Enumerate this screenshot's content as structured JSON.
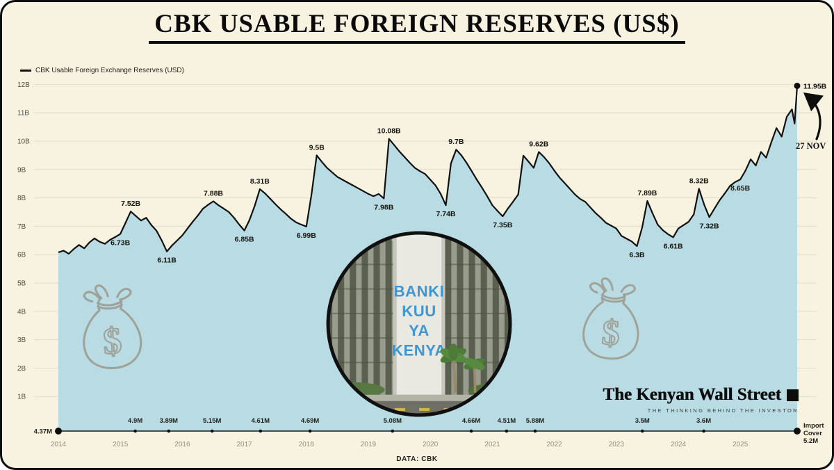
{
  "title": "CBK USABLE FOREIGN RESERVES (US$)",
  "legend": {
    "label": "CBK Usable Foreign Exchange Reserves (USD)"
  },
  "annotation_arrow": {
    "label": "27 NOV"
  },
  "import_cover_end": {
    "label": "Import Cover",
    "value": "5.2M"
  },
  "logo": {
    "wordmark": "The Kenyan Wall Street",
    "tagline": "THE THINKING BEHIND THE INVESTOR"
  },
  "footer": {
    "source": "DATA: CBK"
  },
  "center_image": {
    "sign_lines": [
      "BANKI",
      "KUU",
      "YA",
      "KENYA"
    ]
  },
  "colors": {
    "background": "#f8f3e1",
    "area_fill": "#b9dce4",
    "line": "#101010",
    "grid": "#e2dcc6",
    "sign_blue": "#3e97d3",
    "bag_gray": "#9fa298"
  },
  "chart_data": {
    "type": "area",
    "title": "CBK USABLE FOREIGN RESERVES (US$)",
    "series_name": "CBK Usable Foreign Exchange Reserves (USD)",
    "unit": "USD billions",
    "grid": true,
    "legend_position": "top-left",
    "xlim": [
      2014,
      2025.92
    ],
    "ylim": [
      0,
      12.6
    ],
    "x_ticks": [
      2014,
      2015,
      2016,
      2017,
      2018,
      2019,
      2020,
      2021,
      2022,
      2023,
      2024,
      2025
    ],
    "y_ticks": [
      {
        "value": 1,
        "label": "1B"
      },
      {
        "value": 2,
        "label": "2B"
      },
      {
        "value": 3,
        "label": "3B"
      },
      {
        "value": 4,
        "label": "4B"
      },
      {
        "value": 5,
        "label": "5B"
      },
      {
        "value": 6,
        "label": "6B"
      },
      {
        "value": 7,
        "label": "7B"
      },
      {
        "value": 8,
        "label": "8B"
      },
      {
        "value": 9,
        "label": "9B"
      },
      {
        "value": 10,
        "label": "10B"
      },
      {
        "value": 11,
        "label": "11B"
      },
      {
        "value": 12,
        "label": "12B"
      }
    ],
    "points": [
      [
        2014.0,
        6.08
      ],
      [
        2014.083,
        6.14
      ],
      [
        2014.167,
        6.03
      ],
      [
        2014.25,
        6.2
      ],
      [
        2014.333,
        6.34
      ],
      [
        2014.417,
        6.22
      ],
      [
        2014.5,
        6.43
      ],
      [
        2014.583,
        6.57
      ],
      [
        2014.667,
        6.45
      ],
      [
        2014.75,
        6.38
      ],
      [
        2014.833,
        6.52
      ],
      [
        2014.917,
        6.62
      ],
      [
        2015.0,
        6.73
      ],
      [
        2015.083,
        7.12
      ],
      [
        2015.167,
        7.52
      ],
      [
        2015.25,
        7.36
      ],
      [
        2015.333,
        7.2
      ],
      [
        2015.417,
        7.3
      ],
      [
        2015.5,
        7.04
      ],
      [
        2015.583,
        6.84
      ],
      [
        2015.667,
        6.5
      ],
      [
        2015.75,
        6.11
      ],
      [
        2015.833,
        6.32
      ],
      [
        2015.917,
        6.5
      ],
      [
        2016.0,
        6.68
      ],
      [
        2016.083,
        6.92
      ],
      [
        2016.167,
        7.16
      ],
      [
        2016.25,
        7.38
      ],
      [
        2016.333,
        7.62
      ],
      [
        2016.417,
        7.76
      ],
      [
        2016.5,
        7.88
      ],
      [
        2016.583,
        7.74
      ],
      [
        2016.667,
        7.62
      ],
      [
        2016.75,
        7.5
      ],
      [
        2016.833,
        7.3
      ],
      [
        2016.917,
        7.06
      ],
      [
        2017.0,
        6.85
      ],
      [
        2017.083,
        7.22
      ],
      [
        2017.167,
        7.72
      ],
      [
        2017.25,
        8.31
      ],
      [
        2017.333,
        8.16
      ],
      [
        2017.417,
        7.97
      ],
      [
        2017.5,
        7.78
      ],
      [
        2017.583,
        7.6
      ],
      [
        2017.667,
        7.44
      ],
      [
        2017.75,
        7.27
      ],
      [
        2017.833,
        7.14
      ],
      [
        2017.917,
        7.06
      ],
      [
        2018.0,
        6.99
      ],
      [
        2018.083,
        8.12
      ],
      [
        2018.167,
        9.5
      ],
      [
        2018.25,
        9.27
      ],
      [
        2018.333,
        9.06
      ],
      [
        2018.417,
        8.9
      ],
      [
        2018.5,
        8.74
      ],
      [
        2018.583,
        8.64
      ],
      [
        2018.667,
        8.54
      ],
      [
        2018.75,
        8.44
      ],
      [
        2018.833,
        8.34
      ],
      [
        2018.917,
        8.24
      ],
      [
        2019.0,
        8.14
      ],
      [
        2019.083,
        8.06
      ],
      [
        2019.167,
        8.14
      ],
      [
        2019.25,
        7.98
      ],
      [
        2019.333,
        10.08
      ],
      [
        2019.417,
        9.86
      ],
      [
        2019.5,
        9.64
      ],
      [
        2019.583,
        9.44
      ],
      [
        2019.667,
        9.24
      ],
      [
        2019.75,
        9.06
      ],
      [
        2019.833,
        8.94
      ],
      [
        2019.917,
        8.84
      ],
      [
        2020.0,
        8.64
      ],
      [
        2020.083,
        8.44
      ],
      [
        2020.167,
        8.14
      ],
      [
        2020.25,
        7.74
      ],
      [
        2020.333,
        9.22
      ],
      [
        2020.417,
        9.7
      ],
      [
        2020.5,
        9.5
      ],
      [
        2020.583,
        9.24
      ],
      [
        2020.667,
        8.94
      ],
      [
        2020.75,
        8.64
      ],
      [
        2020.833,
        8.36
      ],
      [
        2020.917,
        8.06
      ],
      [
        2021.0,
        7.74
      ],
      [
        2021.083,
        7.54
      ],
      [
        2021.167,
        7.35
      ],
      [
        2021.25,
        7.62
      ],
      [
        2021.333,
        7.86
      ],
      [
        2021.417,
        8.12
      ],
      [
        2021.5,
        9.49
      ],
      [
        2021.583,
        9.28
      ],
      [
        2021.667,
        9.06
      ],
      [
        2021.75,
        9.62
      ],
      [
        2021.833,
        9.44
      ],
      [
        2021.917,
        9.22
      ],
      [
        2022.0,
        8.96
      ],
      [
        2022.083,
        8.72
      ],
      [
        2022.167,
        8.52
      ],
      [
        2022.25,
        8.32
      ],
      [
        2022.333,
        8.12
      ],
      [
        2022.417,
        7.96
      ],
      [
        2022.5,
        7.86
      ],
      [
        2022.583,
        7.66
      ],
      [
        2022.667,
        7.46
      ],
      [
        2022.75,
        7.3
      ],
      [
        2022.833,
        7.12
      ],
      [
        2022.917,
        7.02
      ],
      [
        2023.0,
        6.92
      ],
      [
        2023.083,
        6.66
      ],
      [
        2023.167,
        6.56
      ],
      [
        2023.25,
        6.46
      ],
      [
        2023.333,
        6.3
      ],
      [
        2023.417,
        6.96
      ],
      [
        2023.5,
        7.89
      ],
      [
        2023.583,
        7.46
      ],
      [
        2023.667,
        7.06
      ],
      [
        2023.75,
        6.86
      ],
      [
        2023.833,
        6.72
      ],
      [
        2023.917,
        6.61
      ],
      [
        2024.0,
        6.92
      ],
      [
        2024.083,
        7.04
      ],
      [
        2024.167,
        7.16
      ],
      [
        2024.25,
        7.42
      ],
      [
        2024.333,
        8.32
      ],
      [
        2024.417,
        7.76
      ],
      [
        2024.5,
        7.32
      ],
      [
        2024.583,
        7.62
      ],
      [
        2024.667,
        7.92
      ],
      [
        2024.75,
        8.16
      ],
      [
        2024.833,
        8.42
      ],
      [
        2024.917,
        8.56
      ],
      [
        2025.0,
        8.65
      ],
      [
        2025.083,
        8.96
      ],
      [
        2025.167,
        9.36
      ],
      [
        2025.25,
        9.14
      ],
      [
        2025.333,
        9.62
      ],
      [
        2025.417,
        9.42
      ],
      [
        2025.5,
        9.96
      ],
      [
        2025.583,
        10.46
      ],
      [
        2025.667,
        10.16
      ],
      [
        2025.75,
        10.86
      ],
      [
        2025.833,
        11.12
      ],
      [
        2025.875,
        10.62
      ],
      [
        2025.917,
        11.95
      ]
    ],
    "point_labels": [
      {
        "x": 2015.0,
        "v": 6.73,
        "label": "6.73B",
        "pos": "below"
      },
      {
        "x": 2015.167,
        "v": 7.52,
        "label": "7.52B",
        "pos": "above"
      },
      {
        "x": 2015.75,
        "v": 6.11,
        "label": "6.11B",
        "pos": "below"
      },
      {
        "x": 2016.5,
        "v": 7.88,
        "label": "7.88B",
        "pos": "above"
      },
      {
        "x": 2017.0,
        "v": 6.85,
        "label": "6.85B",
        "pos": "below"
      },
      {
        "x": 2017.25,
        "v": 8.31,
        "label": "8.31B",
        "pos": "above"
      },
      {
        "x": 2018.0,
        "v": 6.99,
        "label": "6.99B",
        "pos": "below"
      },
      {
        "x": 2018.167,
        "v": 9.5,
        "label": "9.5B",
        "pos": "above"
      },
      {
        "x": 2019.25,
        "v": 7.98,
        "label": "7.98B",
        "pos": "below"
      },
      {
        "x": 2019.333,
        "v": 10.08,
        "label": "10.08B",
        "pos": "above"
      },
      {
        "x": 2020.25,
        "v": 7.74,
        "label": "7.74B",
        "pos": "below"
      },
      {
        "x": 2020.417,
        "v": 9.7,
        "label": "9.7B",
        "pos": "above"
      },
      {
        "x": 2021.167,
        "v": 7.35,
        "label": "7.35B",
        "pos": "below"
      },
      {
        "x": 2021.75,
        "v": 9.62,
        "label": "9.62B",
        "pos": "above"
      },
      {
        "x": 2023.333,
        "v": 6.3,
        "label": "6.3B",
        "pos": "below"
      },
      {
        "x": 2023.5,
        "v": 7.89,
        "label": "7.89B",
        "pos": "above"
      },
      {
        "x": 2023.917,
        "v": 6.61,
        "label": "6.61B",
        "pos": "below"
      },
      {
        "x": 2024.333,
        "v": 8.32,
        "label": "8.32B",
        "pos": "above"
      },
      {
        "x": 2024.5,
        "v": 7.32,
        "label": "7.32B",
        "pos": "below"
      },
      {
        "x": 2025.0,
        "v": 8.65,
        "label": "8.65B",
        "pos": "below"
      },
      {
        "x": 2025.917,
        "v": 11.95,
        "label": "11.95B",
        "pos": "right",
        "dot": true
      }
    ],
    "import_cover": [
      {
        "x": 2014.0,
        "label": "4.37M",
        "side": "left"
      },
      {
        "x": 2015.24,
        "label": "4.9M"
      },
      {
        "x": 2015.78,
        "label": "3.89M"
      },
      {
        "x": 2016.48,
        "label": "5.15M"
      },
      {
        "x": 2017.26,
        "label": "4.61M"
      },
      {
        "x": 2018.06,
        "label": "4.69M"
      },
      {
        "x": 2019.39,
        "label": "5.08M"
      },
      {
        "x": 2020.66,
        "label": "4.66M"
      },
      {
        "x": 2021.23,
        "label": "4.51M"
      },
      {
        "x": 2021.69,
        "label": "5.88M"
      },
      {
        "x": 2023.42,
        "label": "3.5M"
      },
      {
        "x": 2024.41,
        "label": "3.6M"
      }
    ]
  }
}
